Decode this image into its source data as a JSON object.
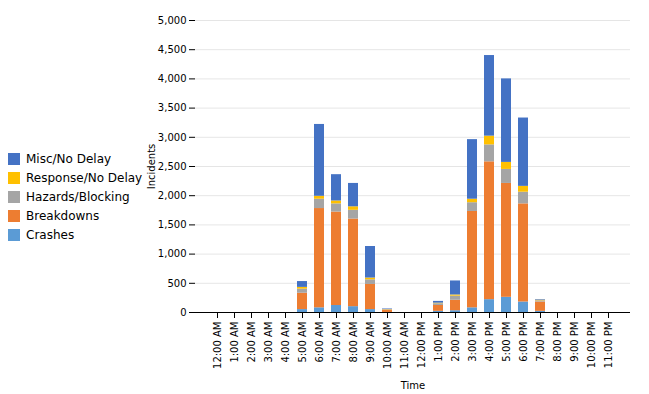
{
  "chart_data": {
    "type": "bar",
    "stacked": true,
    "xlabel": "Time",
    "ylabel": "Incidents",
    "categories": [
      "12:00 AM",
      "1:00 AM",
      "2:00 AM",
      "3:00 AM",
      "4:00 AM",
      "5:00 AM",
      "6:00 AM",
      "7:00 AM",
      "8:00 AM",
      "9:00 AM",
      "10:00 AM",
      "11:00 AM",
      "12:00 PM",
      "1:00 PM",
      "2:00 PM",
      "3:00 PM",
      "4:00 PM",
      "5:00 PM",
      "6:00 PM",
      "7:00 PM",
      "8:00 PM",
      "9:00 PM",
      "10:00 PM",
      "11:00 PM"
    ],
    "series": [
      {
        "name": "Crashes",
        "color": "#5b9bd5",
        "values": [
          0,
          0,
          0,
          0,
          0,
          50,
          80,
          120,
          100,
          50,
          0,
          0,
          0,
          20,
          30,
          80,
          220,
          260,
          180,
          20,
          0,
          0,
          0,
          0
        ]
      },
      {
        "name": "Breakdowns",
        "color": "#ed7d31",
        "values": [
          0,
          0,
          0,
          0,
          0,
          280,
          1700,
          1600,
          1500,
          430,
          40,
          0,
          0,
          100,
          180,
          1650,
          2360,
          1950,
          1680,
          160,
          0,
          0,
          0,
          0
        ]
      },
      {
        "name": "Hazards/Blocking",
        "color": "#a5a5a5",
        "values": [
          0,
          0,
          0,
          0,
          0,
          70,
          160,
          140,
          150,
          80,
          5,
          0,
          0,
          30,
          70,
          150,
          290,
          240,
          200,
          20,
          0,
          0,
          0,
          0
        ]
      },
      {
        "name": "Response/No Delay",
        "color": "#ffc000",
        "values": [
          0,
          0,
          0,
          0,
          0,
          30,
          50,
          50,
          60,
          30,
          5,
          0,
          0,
          10,
          20,
          60,
          150,
          120,
          100,
          10,
          0,
          0,
          0,
          0
        ]
      },
      {
        "name": "Misc/No Delay",
        "color": "#4472c4",
        "values": [
          0,
          0,
          0,
          0,
          0,
          100,
          1230,
          450,
          400,
          540,
          10,
          0,
          0,
          30,
          240,
          1020,
          1380,
          1430,
          1170,
          10,
          0,
          0,
          0,
          0
        ]
      }
    ],
    "ylim": [
      0,
      5000
    ],
    "yticks": [
      0,
      500,
      {
        "value": 1000,
        "label": "1,000"
      },
      {
        "value": 1500,
        "label": "1,500"
      },
      {
        "value": 2000,
        "label": "2,000"
      },
      {
        "value": 2500,
        "label": "2,500"
      },
      {
        "value": 3000,
        "label": "3,000"
      },
      {
        "value": 3500,
        "label": "3,500"
      },
      {
        "value": 4000,
        "label": "4,000"
      },
      {
        "value": 4500,
        "label": "4,500"
      },
      {
        "value": 5000,
        "label": "5,000"
      }
    ],
    "grid": true,
    "legend": "left"
  }
}
